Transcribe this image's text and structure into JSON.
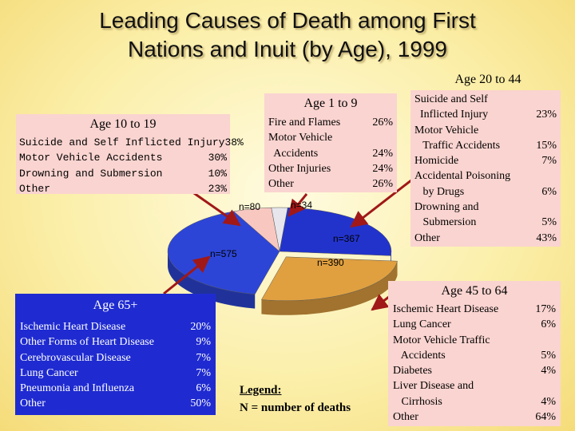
{
  "title": {
    "line1": "Leading Causes of Death among First",
    "line2": "Nations and Inuit (by Age), 1999"
  },
  "chart_data": {
    "type": "pie",
    "categories": [
      "Age 1 to 9",
      "Age 10 to 19",
      "Age 20 to 44",
      "Age 45 to 64",
      "Age 65+"
    ],
    "values": [
      34,
      80,
      367,
      390,
      575
    ],
    "value_labels": [
      "n=34",
      "n=80",
      "n=367",
      "n=390",
      "n=575"
    ],
    "colors": [
      "#e6e6ec",
      "#f8c8c0",
      "#2233cc",
      "#e0a040",
      "#2d45d6"
    ],
    "legend": {
      "title": "Legend:",
      "text": "N = number of deaths"
    }
  },
  "groups": {
    "age_1_9": {
      "heading": "Age 1 to 9",
      "rows": [
        {
          "label": "Fire and Flames",
          "value": "26%"
        },
        {
          "label": "Motor Vehicle",
          "value": ""
        },
        {
          "label": "  Accidents",
          "value": "24%"
        },
        {
          "label": "Other Injuries",
          "value": "24%"
        },
        {
          "label": "Other",
          "value": "26%"
        }
      ]
    },
    "age_10_19": {
      "heading": "Age 10 to 19",
      "rows": [
        {
          "label": "Suicide and Self Inflicted Injury",
          "value": "38%"
        },
        {
          "label": "Motor Vehicle Accidents",
          "value": "30%"
        },
        {
          "label": "Drowning and Submersion",
          "value": "10%"
        },
        {
          "label": "Other",
          "value": "23%"
        }
      ]
    },
    "age_20_44": {
      "heading": "Age 20 to 44",
      "rows": [
        {
          "label": "Suicide and Self",
          "value": ""
        },
        {
          "label": "  Inflicted Injury",
          "value": "23%"
        },
        {
          "label": "Motor Vehicle",
          "value": ""
        },
        {
          "label": "   Traffic Accidents",
          "value": "15%"
        },
        {
          "label": "Homicide",
          "value": "7%"
        },
        {
          "label": "Accidental Poisoning",
          "value": ""
        },
        {
          "label": "   by Drugs",
          "value": "6%"
        },
        {
          "label": "Drowning and",
          "value": ""
        },
        {
          "label": "   Submersion",
          "value": "5%"
        },
        {
          "label": "Other",
          "value": "43%"
        }
      ]
    },
    "age_45_64": {
      "heading": "Age 45 to 64",
      "rows": [
        {
          "label": "Ischemic Heart Disease",
          "value": "17%"
        },
        {
          "label": "Lung Cancer",
          "value": "6%"
        },
        {
          "label": "Motor Vehicle Traffic",
          "value": ""
        },
        {
          "label": "   Accidents",
          "value": "5%"
        },
        {
          "label": "Diabetes",
          "value": "4%"
        },
        {
          "label": "Liver Disease and",
          "value": ""
        },
        {
          "label": "   Cirrhosis",
          "value": "4%"
        },
        {
          "label": "Other",
          "value": "64%"
        }
      ]
    },
    "age_65_plus": {
      "heading": "Age 65+",
      "rows": [
        {
          "label": "Ischemic Heart Disease",
          "value": "20%"
        },
        {
          "label": "Other Forms of Heart Disease",
          "value": "9%"
        },
        {
          "label": "Cerebrovascular Disease",
          "value": "7%"
        },
        {
          "label": "Lung Cancer",
          "value": "7%"
        },
        {
          "label": "Pneumonia and Influenza",
          "value": "6%"
        },
        {
          "label": "Other",
          "value": "50%"
        }
      ]
    }
  }
}
